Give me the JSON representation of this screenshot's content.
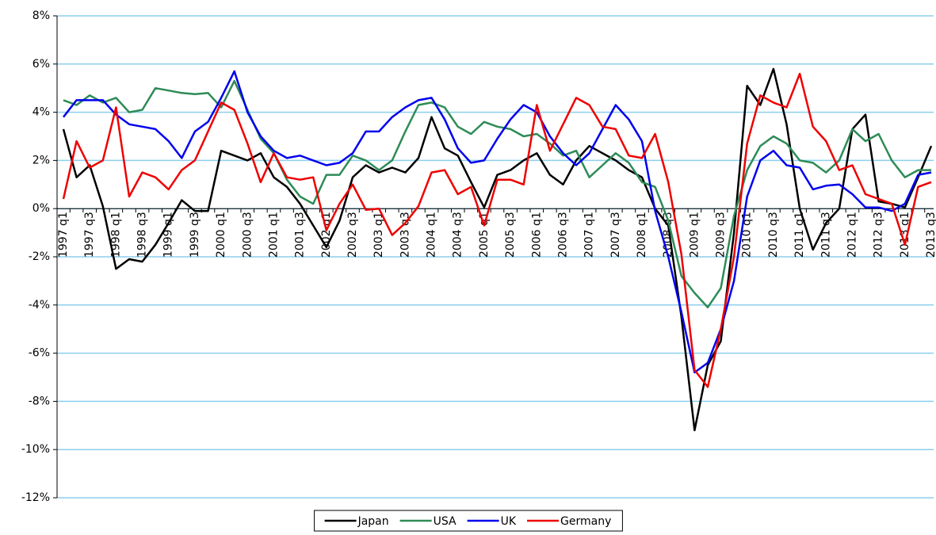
{
  "chart_data": {
    "type": "line",
    "categories": [
      "1997 q1",
      null,
      "1997 q3",
      null,
      "1998 q1",
      null,
      "1998 q3",
      null,
      "1999 q1",
      null,
      "1999 q3",
      null,
      "2000 q1",
      null,
      "2000 q3",
      null,
      "2001 q1",
      null,
      "2001 q3",
      null,
      "2002 q1",
      null,
      "2002 q3",
      null,
      "2003 q1",
      null,
      "2003 q3",
      null,
      "2004 q1",
      null,
      "2004 q3",
      null,
      "2005 q1",
      null,
      "2005 q3",
      null,
      "2006 q1",
      null,
      "2006 q3",
      null,
      "2007 q1",
      null,
      "2007 q3",
      null,
      "2008 q1",
      null,
      "2008 q3",
      null,
      "2009 q1",
      null,
      "2009 q3",
      null,
      "2010 q1",
      null,
      "2010 q3",
      null,
      "2011 q1",
      null,
      "2011 q3",
      null,
      "2012 q1",
      null,
      "2012 q3",
      null,
      "2013 q1",
      null,
      "2013 q3"
    ],
    "series": [
      {
        "name": "Japan",
        "color": "#000000",
        "values": [
          3.3,
          1.3,
          1.8,
          0.1,
          -2.5,
          -2.1,
          -2.2,
          -1.5,
          -0.6,
          0.35,
          -0.1,
          -0.1,
          2.4,
          2.2,
          2.0,
          2.3,
          1.3,
          0.9,
          0.2,
          -0.7,
          -1.6,
          -0.5,
          1.3,
          1.8,
          1.5,
          1.7,
          1.5,
          2.1,
          3.8,
          2.5,
          2.2,
          1.1,
          0.05,
          1.4,
          1.6,
          2.0,
          2.3,
          1.4,
          1.0,
          2.0,
          2.6,
          2.3,
          2.0,
          1.6,
          1.3,
          0.0,
          -0.7,
          -4.5,
          -9.2,
          -6.5,
          -5.5,
          -1.0,
          5.1,
          4.3,
          5.8,
          3.5,
          0.0,
          -1.7,
          -0.6,
          0.0,
          3.3,
          3.9,
          0.3,
          0.2,
          0.05,
          1.3,
          2.6
        ]
      },
      {
        "name": "USA",
        "color": "#2e8b57",
        "values": [
          4.5,
          4.3,
          4.7,
          4.4,
          4.6,
          4.0,
          4.1,
          5.0,
          4.9,
          4.8,
          4.75,
          4.8,
          4.2,
          5.3,
          4.1,
          2.9,
          2.3,
          1.2,
          0.5,
          0.2,
          1.4,
          1.4,
          2.2,
          2.0,
          1.6,
          2.0,
          3.2,
          4.3,
          4.4,
          4.2,
          3.4,
          3.1,
          3.6,
          3.4,
          3.3,
          3.0,
          3.1,
          2.7,
          2.2,
          2.4,
          1.3,
          1.8,
          2.3,
          1.9,
          1.1,
          0.9,
          -0.5,
          -2.8,
          -3.5,
          -4.1,
          -3.3,
          -0.3,
          1.6,
          2.6,
          3.0,
          2.7,
          2.0,
          1.9,
          1.5,
          2.0,
          3.3,
          2.8,
          3.1,
          2.0,
          1.3,
          1.6,
          1.6
        ]
      },
      {
        "name": "UK",
        "color": "#0000ee",
        "values": [
          3.8,
          4.5,
          4.5,
          4.5,
          3.9,
          3.5,
          3.4,
          3.3,
          2.8,
          2.1,
          3.2,
          3.6,
          4.6,
          5.7,
          4.0,
          3.0,
          2.4,
          2.1,
          2.2,
          2.0,
          1.8,
          1.9,
          2.3,
          3.2,
          3.2,
          3.8,
          4.2,
          4.5,
          4.6,
          3.7,
          2.5,
          1.9,
          2.0,
          2.9,
          3.7,
          4.3,
          4.0,
          3.0,
          2.3,
          1.8,
          2.3,
          3.3,
          4.3,
          3.7,
          2.8,
          -0.1,
          -2.0,
          -4.3,
          -6.8,
          -6.4,
          -5.0,
          -3.0,
          0.5,
          2.0,
          2.4,
          1.8,
          1.7,
          0.8,
          0.95,
          1.0,
          0.6,
          0.05,
          0.05,
          -0.1,
          0.2,
          1.4,
          1.5
        ]
      },
      {
        "name": "Germany",
        "color": "#ee0000",
        "values": [
          0.4,
          2.8,
          1.7,
          2.0,
          4.2,
          0.5,
          1.5,
          1.3,
          0.8,
          1.6,
          2.0,
          3.2,
          4.4,
          4.1,
          2.7,
          1.1,
          2.3,
          1.3,
          1.2,
          1.3,
          -0.9,
          0.2,
          1.0,
          -0.05,
          0.0,
          -1.1,
          -0.6,
          0.1,
          1.5,
          1.6,
          0.6,
          0.9,
          -0.7,
          1.2,
          1.2,
          1.0,
          4.3,
          2.4,
          3.5,
          4.6,
          4.3,
          3.4,
          3.3,
          2.2,
          2.1,
          3.1,
          1.1,
          -1.9,
          -6.7,
          -7.4,
          -5.0,
          -2.0,
          2.7,
          4.7,
          4.4,
          4.2,
          5.6,
          3.4,
          2.8,
          1.6,
          1.8,
          0.6,
          0.4,
          0.2,
          -1.5,
          0.9,
          1.1
        ]
      }
    ],
    "ylim": [
      -12,
      8
    ],
    "yticks": [
      {
        "value": -12,
        "label": "-12%"
      },
      {
        "value": -10,
        "label": "-10%"
      },
      {
        "value": -8,
        "label": "-8%"
      },
      {
        "value": -6,
        "label": "-6%"
      },
      {
        "value": -4,
        "label": "-4%"
      },
      {
        "value": -2,
        "label": "-2%"
      },
      {
        "value": 0,
        "label": "0%"
      },
      {
        "value": 2,
        "label": "2%"
      },
      {
        "value": 4,
        "label": "4%"
      },
      {
        "value": 6,
        "label": "6%"
      },
      {
        "value": 8,
        "label": "8%"
      }
    ],
    "grid": true,
    "grid_color": "#8ccfee",
    "legend": "bottom"
  }
}
